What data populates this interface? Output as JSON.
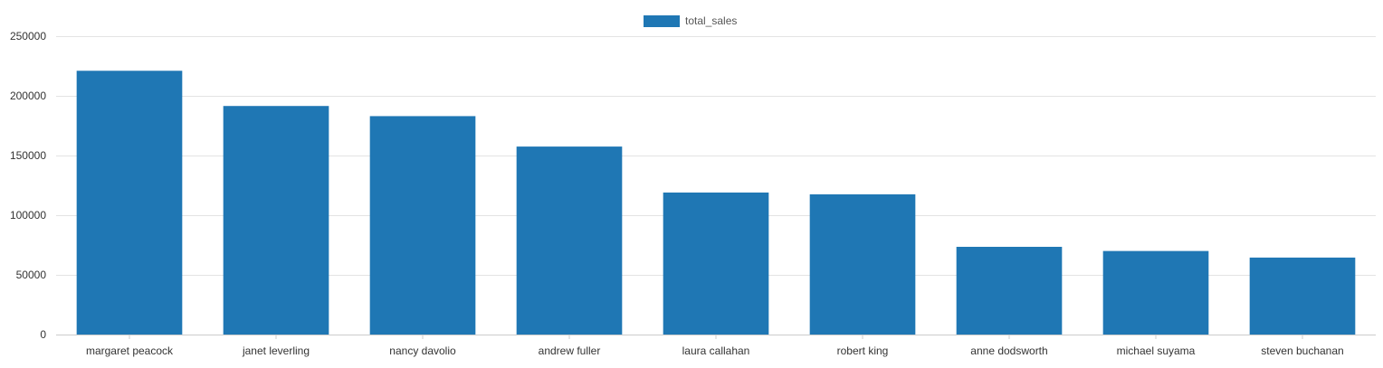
{
  "chart_data": {
    "type": "bar",
    "categories": [
      "margaret peacock",
      "janet leverling",
      "nancy davolio",
      "andrew fuller",
      "laura callahan",
      "robert king",
      "anne dodsworth",
      "michael suyama",
      "steven buchanan"
    ],
    "series": [
      {
        "name": "total_sales",
        "values": [
          221000,
          191500,
          183000,
          157500,
          119000,
          117500,
          73500,
          70000,
          64500
        ],
        "color": "#1f77b4"
      }
    ],
    "title": "",
    "xlabel": "",
    "ylabel": "",
    "ylim": [
      0,
      250000
    ],
    "yticks": [
      0,
      50000,
      100000,
      150000,
      200000,
      250000
    ],
    "grid": true,
    "legend_position": "top-center"
  }
}
